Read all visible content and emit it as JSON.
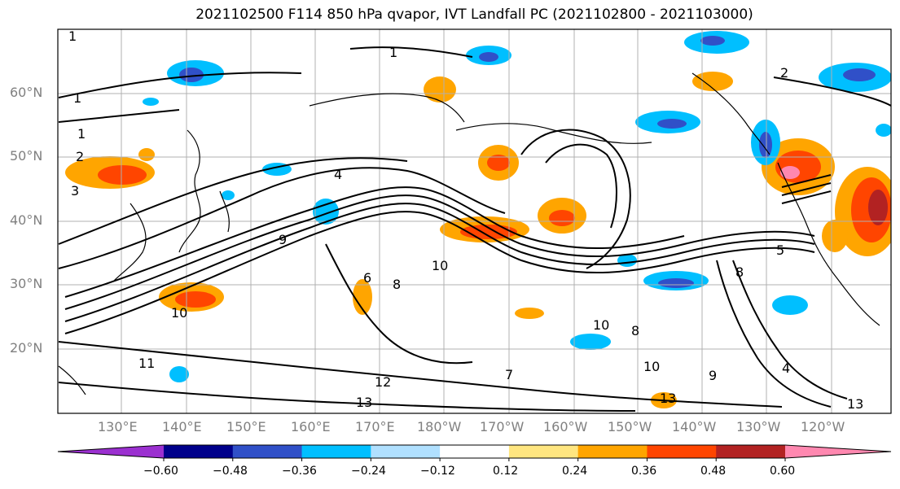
{
  "title": "2021102500 F114 850 hPa qvapor, IVT Landfall PC (2021102800 - 2021103000)",
  "lat_labels": [
    "60°N",
    "50°N",
    "40°N",
    "30°N",
    "20°N"
  ],
  "lon_labels": [
    "130°E",
    "140°E",
    "150°E",
    "160°E",
    "170°E",
    "180°W",
    "170°W",
    "160°W",
    "150°W",
    "140°W",
    "130°W",
    "120°W"
  ],
  "contour_labels": [
    "1",
    "1",
    "1",
    "1",
    "2",
    "2",
    "3",
    "4",
    "5",
    "6",
    "8",
    "8",
    "8",
    "9",
    "10",
    "10",
    "10",
    "10",
    "11",
    "12",
    "13",
    "13",
    "13",
    "9",
    "4",
    "7"
  ],
  "colorbar": {
    "ticks": [
      "−0.60",
      "−0.48",
      "−0.36",
      "−0.24",
      "−0.12",
      "0.12",
      "0.24",
      "0.36",
      "0.48",
      "0.60"
    ],
    "colors": [
      "#9b30d0",
      "#00008b",
      "#3050c8",
      "#00bfff",
      "#b0e0ff",
      "#ffffff",
      "#ffe680",
      "#ffa500",
      "#ff4500",
      "#b22222",
      "#ff88b0"
    ]
  }
}
